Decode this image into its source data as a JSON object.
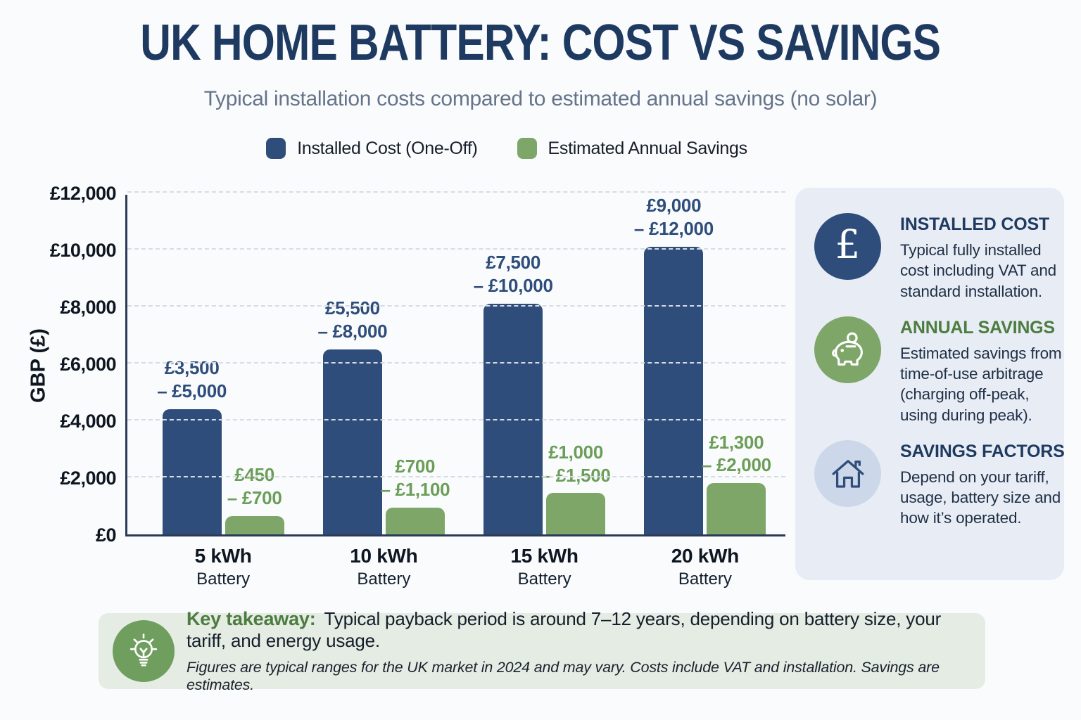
{
  "chart_data": {
    "type": "bar",
    "title": "UK HOME BATTERY: COST VS SAVINGS",
    "subtitle": "Typical installation costs compared to estimated annual savings (no solar)",
    "ylabel": "GBP (£)",
    "ylim": [
      0,
      12000
    ],
    "ytick_interval": 2000,
    "ytick_labels": [
      "£0",
      "£2,000",
      "£4,000",
      "£6,000",
      "£8,000",
      "£10,000",
      "£12,000"
    ],
    "grid": "horizontal-dashed",
    "legend_position": "top",
    "categories": [
      {
        "line1": "5 kWh",
        "line2": "Battery"
      },
      {
        "line1": "10 kWh",
        "line2": "Battery"
      },
      {
        "line1": "15 kWh",
        "line2": "Battery"
      },
      {
        "line1": "20 kWh",
        "line2": "Battery"
      }
    ],
    "series": [
      {
        "name": "Installed Cost (One-Off)",
        "color": "#2e4d7b",
        "label_color": "#2e4d7b",
        "range_low": [
          3500,
          5500,
          7500,
          9000
        ],
        "range_high": [
          5000,
          8000,
          10000,
          12000
        ],
        "bar_values": [
          4400,
          6500,
          8100,
          10100
        ],
        "range_labels": [
          [
            "£3,500",
            "– £5,000"
          ],
          [
            "£5,500",
            "– £8,000"
          ],
          [
            "£7,500",
            "– £10,000"
          ],
          [
            "£9,000",
            "– £12,000"
          ]
        ]
      },
      {
        "name": "Estimated Annual Savings",
        "color": "#7da668",
        "label_color": "#6b9e58",
        "range_low": [
          450,
          700,
          1000,
          1300
        ],
        "range_high": [
          700,
          1100,
          1500,
          2000
        ],
        "bar_values": [
          650,
          950,
          1450,
          1800
        ],
        "range_labels": [
          [
            "£450",
            "– £700"
          ],
          [
            "£700",
            "– £1,100"
          ],
          [
            "£1,000",
            "– £1,500"
          ],
          [
            "£1,300",
            "– £2,000"
          ]
        ]
      }
    ]
  },
  "sidebar": {
    "items": [
      {
        "icon": "pound-sterling-icon",
        "glyph": "£",
        "title": "INSTALLED COST",
        "body": "Typical fully installed cost including VAT and standard installation."
      },
      {
        "icon": "piggy-bank-icon",
        "title": "ANNUAL SAVINGS",
        "body": "Estimated savings from time-of-use arbitrage (charging off-peak, using during peak)."
      },
      {
        "icon": "house-icon",
        "title": "SAVINGS FACTORS",
        "body": "Depend on your tariff, usage, battery size and how it’s operated."
      }
    ]
  },
  "takeaway": {
    "icon": "lightbulb-icon",
    "heading": "Key takeaway:",
    "text": "Typical payback period is around 7–12 years, depending on battery size, your tariff, and energy usage.",
    "footnote": "Figures are typical ranges for the UK market in 2024 and may vary. Costs include VAT and installation. Savings are estimates."
  },
  "colors": {
    "background": "#fafbfc",
    "title_navy": "#1f3a60",
    "subtitle_gray": "#65748a",
    "cost_blue": "#2e4d7b",
    "savings_green": "#7da668",
    "green_heading": "#4c7c3f",
    "axis_navy": "#2b3b57",
    "gridline_gray": "#d7dce3",
    "sidebar_bg": "#e8edf5",
    "sidebar_light_circle": "#ccd8e9",
    "takeaway_bg": "#e5ece4",
    "takeaway_circle_green": "#6f9e5e"
  }
}
